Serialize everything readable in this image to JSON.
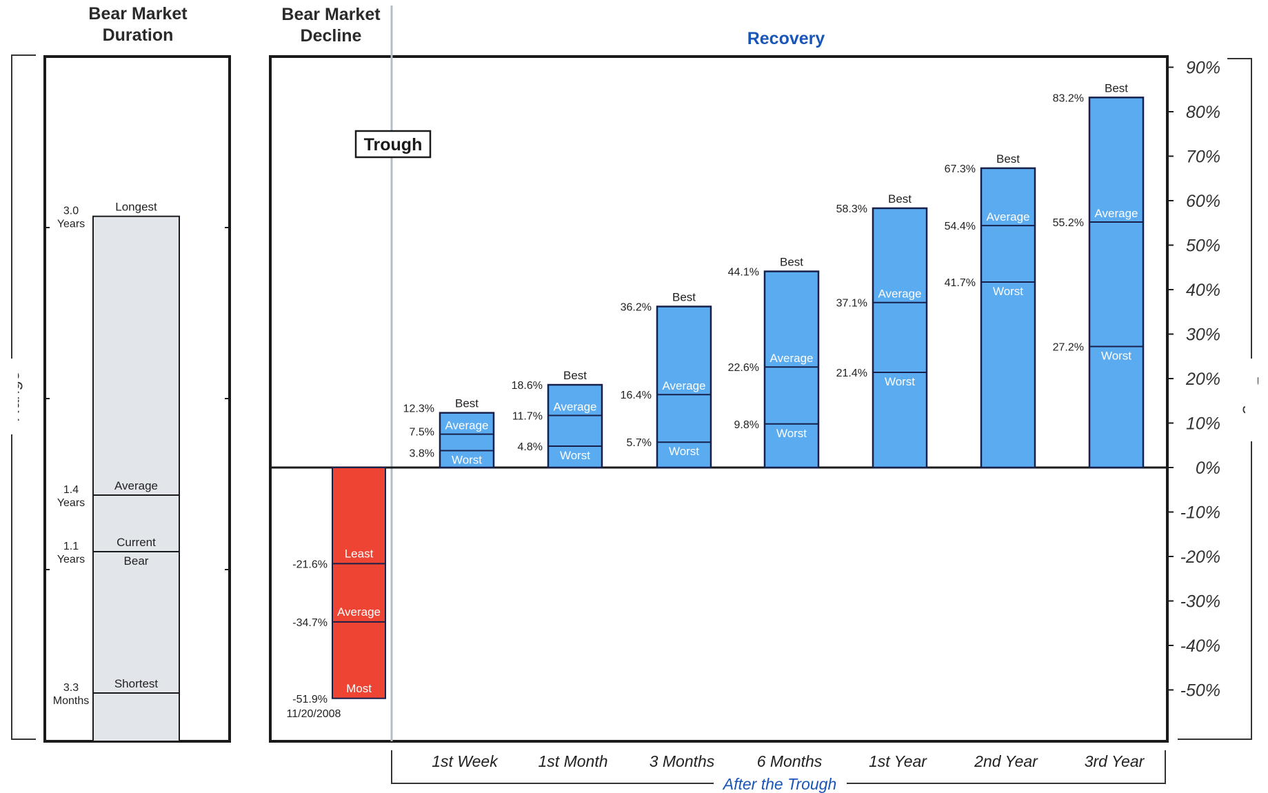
{
  "headers": {
    "duration": "Bear Market Duration",
    "decline": "Bear Market Decline",
    "recovery": "Recovery"
  },
  "range_label": "Range",
  "trough_label": "Trough",
  "after_trough_label": "After the Trough",
  "chart_data": [
    {
      "type": "bar",
      "title": "Bear Market Duration",
      "xlabel": "",
      "ylabel": "Range",
      "markers": [
        {
          "label": "Longest",
          "value_label": "3.0 Years",
          "value_years": 3.0
        },
        {
          "label": "Average",
          "value_label": "1.4 Years",
          "value_years": 1.4
        },
        {
          "label": "Current Bear",
          "value_label": "1.1 Years",
          "value_years": 1.1
        },
        {
          "label": "Shortest",
          "value_label": "3.3 Months",
          "value_years": 0.275
        }
      ],
      "colors": {
        "fill": "#e2e5ea",
        "stroke": "#1c1c1c"
      }
    },
    {
      "type": "bar",
      "title": "Recovery",
      "xlabel": "After the Trough",
      "ylabel": "Range",
      "ylim": [
        -60,
        90
      ],
      "y_ticks": [
        "90%",
        "80%",
        "70%",
        "60%",
        "50%",
        "40%",
        "30%",
        "20%",
        "10%",
        "0%",
        "-10%",
        "-20%",
        "-30%",
        "-40%",
        "-50%"
      ],
      "y_tick_values": [
        90,
        80,
        70,
        60,
        50,
        40,
        30,
        20,
        10,
        0,
        -10,
        -20,
        -30,
        -40,
        -50
      ],
      "categories": [
        "1st Week",
        "1st Month",
        "3 Months",
        "6 Months",
        "1st Year",
        "2nd Year",
        "3rd Year"
      ],
      "series": [
        {
          "name": "Best",
          "values": [
            12.3,
            18.6,
            36.2,
            44.1,
            58.3,
            67.3,
            83.2
          ],
          "labels": [
            "12.3%",
            "18.6%",
            "36.2%",
            "44.1%",
            "58.3%",
            "67.3%",
            "83.2%"
          ]
        },
        {
          "name": "Average",
          "values": [
            7.5,
            11.7,
            16.4,
            22.6,
            37.1,
            54.4,
            55.2
          ],
          "labels": [
            "7.5%",
            "11.7%",
            "16.4%",
            "22.6%",
            "37.1%",
            "54.4%",
            "55.2%"
          ]
        },
        {
          "name": "Worst",
          "values": [
            3.8,
            4.8,
            5.7,
            9.8,
            21.4,
            41.7,
            27.2
          ],
          "labels": [
            "3.8%",
            "4.8%",
            "5.7%",
            "9.8%",
            "21.4%",
            "41.7%",
            "27.2%"
          ]
        }
      ],
      "decline": {
        "series": [
          {
            "name": "Least",
            "value": -21.6,
            "label": "-21.6%"
          },
          {
            "name": "Average",
            "value": -34.7,
            "label": "-34.7%"
          },
          {
            "name": "Most",
            "value": -51.9,
            "label": "-51.9%"
          }
        ],
        "date": "11/20/2008"
      },
      "colors": {
        "recovery": "#5aabf0",
        "decline": "#ee4433",
        "bar_stroke": "#16204a",
        "axis_text": "#333333"
      }
    }
  ]
}
